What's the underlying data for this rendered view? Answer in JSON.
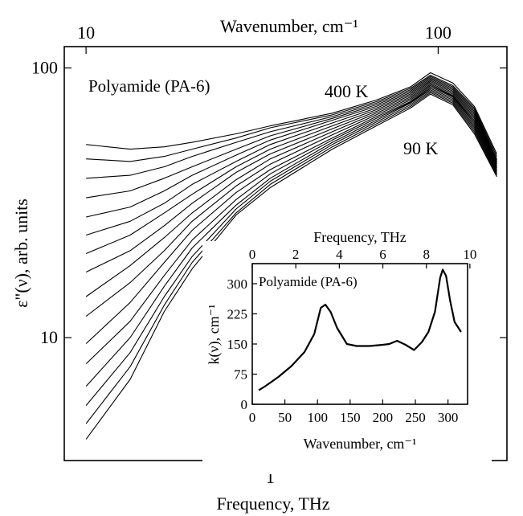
{
  "chart_data": [
    {
      "type": "line",
      "title": "",
      "annotation_material": "Polyamide (PA-6)",
      "annotation_high_temp": "400 K",
      "annotation_low_temp": "90 K",
      "xlabel": "Frequency, THz",
      "x_scale": "log",
      "xlim": [
        0.26,
        4.7
      ],
      "x_ticks": [
        1
      ],
      "x_tick_labels": [
        "1"
      ],
      "secondary_xlabel": "Wavenumber, cm⁻¹",
      "secondary_x_ticks": [
        10,
        100
      ],
      "secondary_x_tick_labels": [
        "10",
        "100"
      ],
      "ylabel": "ε\"(ν), arb. units",
      "y_scale": "log",
      "ylim": [
        3.5,
        120
      ],
      "y_ticks": [
        10,
        100
      ],
      "y_tick_labels": [
        "10",
        "100"
      ],
      "x": [
        0.3,
        0.4,
        0.5,
        0.6,
        0.8,
        1.0,
        1.5,
        2.0,
        2.5,
        2.85,
        3.3,
        3.8,
        4.4
      ],
      "series": [
        {
          "values": [
            52,
            50,
            51,
            53,
            57,
            61,
            68,
            76,
            85,
            96,
            88,
            72,
            48
          ]
        },
        {
          "values": [
            46,
            45,
            47,
            50,
            55,
            60,
            67,
            75,
            84,
            94,
            86,
            71,
            47
          ]
        },
        {
          "values": [
            39,
            40,
            43,
            47,
            53,
            58,
            66,
            74,
            83,
            93,
            85,
            70,
            46
          ]
        },
        {
          "values": [
            33,
            35,
            39,
            43,
            50,
            56,
            65,
            73,
            82,
            92,
            84,
            69,
            45.5
          ]
        },
        {
          "values": [
            28,
            30.5,
            35,
            40,
            47.5,
            54,
            64,
            72,
            81,
            91,
            83,
            68,
            45
          ]
        },
        {
          "values": [
            24,
            27,
            31.5,
            37,
            45,
            52,
            62.5,
            71,
            80,
            90,
            82,
            67,
            44.5
          ]
        },
        {
          "values": [
            20.5,
            24,
            29,
            34,
            43,
            50,
            61,
            70,
            79,
            89,
            81,
            66,
            44
          ]
        },
        {
          "values": [
            17.5,
            21,
            26,
            31.5,
            41,
            48,
            59.5,
            69,
            78,
            88,
            80,
            65,
            43.5
          ]
        },
        {
          "values": [
            14.2,
            18.5,
            23.5,
            29,
            38.5,
            46,
            58,
            68,
            77,
            87,
            79,
            64,
            43
          ]
        },
        {
          "values": [
            12,
            16,
            21,
            27,
            36.5,
            44,
            56.5,
            67,
            76,
            86,
            78.5,
            63,
            42.5
          ]
        },
        {
          "values": [
            9.5,
            13.5,
            19,
            25,
            34.5,
            42,
            55,
            66,
            75,
            85,
            78,
            62,
            42
          ]
        },
        {
          "values": [
            8,
            11.5,
            17,
            23,
            32.5,
            40.5,
            54,
            65,
            74.5,
            84,
            77,
            61,
            41.5
          ]
        },
        {
          "values": [
            6.6,
            10,
            15.5,
            21.5,
            31,
            39,
            53,
            64,
            74,
            83,
            76,
            60,
            41
          ]
        },
        {
          "values": [
            5.6,
            8.8,
            14.2,
            20,
            30,
            38,
            52,
            63,
            73,
            82,
            75,
            59,
            40.5
          ]
        },
        {
          "values": [
            4.8,
            7.8,
            13.2,
            19,
            29,
            37,
            51,
            62,
            72,
            81,
            74,
            58,
            40
          ]
        },
        {
          "values": [
            4.2,
            7,
            12.5,
            18,
            28.5,
            36,
            50,
            61,
            71,
            80,
            73,
            57,
            39.5
          ]
        }
      ],
      "grid": false,
      "legend": "none"
    },
    {
      "type": "line",
      "title": "",
      "annotation_material": "Polyamide (PA-6)",
      "xlabel": "Wavenumber,  cm⁻¹",
      "xlim": [
        0,
        330
      ],
      "x_ticks": [
        0,
        50,
        100,
        150,
        200,
        250,
        300
      ],
      "x_tick_labels": [
        "0",
        "50",
        "100",
        "150",
        "200",
        "250",
        "300"
      ],
      "secondary_xlabel": "Frequency, THz",
      "secondary_x_ticks": [
        0,
        2,
        4,
        6,
        8,
        10
      ],
      "secondary_x_tick_labels": [
        "0",
        "2",
        "4",
        "6",
        "8",
        "10"
      ],
      "ylabel": "k(ν), cm⁻¹",
      "ylim": [
        0,
        350
      ],
      "y_ticks": [
        0,
        75,
        150,
        225,
        300
      ],
      "y_tick_labels": [
        "0",
        "75",
        "150",
        "225",
        "300"
      ],
      "x": [
        10,
        20,
        40,
        60,
        80,
        95,
        105,
        112,
        120,
        130,
        145,
        160,
        180,
        200,
        210,
        222,
        235,
        248,
        260,
        270,
        280,
        288,
        292,
        297,
        303,
        310,
        320
      ],
      "series": [
        {
          "values": [
            35,
            45,
            68,
            95,
            130,
            175,
            240,
            248,
            230,
            190,
            150,
            145,
            145,
            148,
            150,
            158,
            148,
            135,
            155,
            180,
            230,
            315,
            335,
            320,
            260,
            205,
            180
          ]
        }
      ],
      "grid": false,
      "legend": "none"
    }
  ]
}
